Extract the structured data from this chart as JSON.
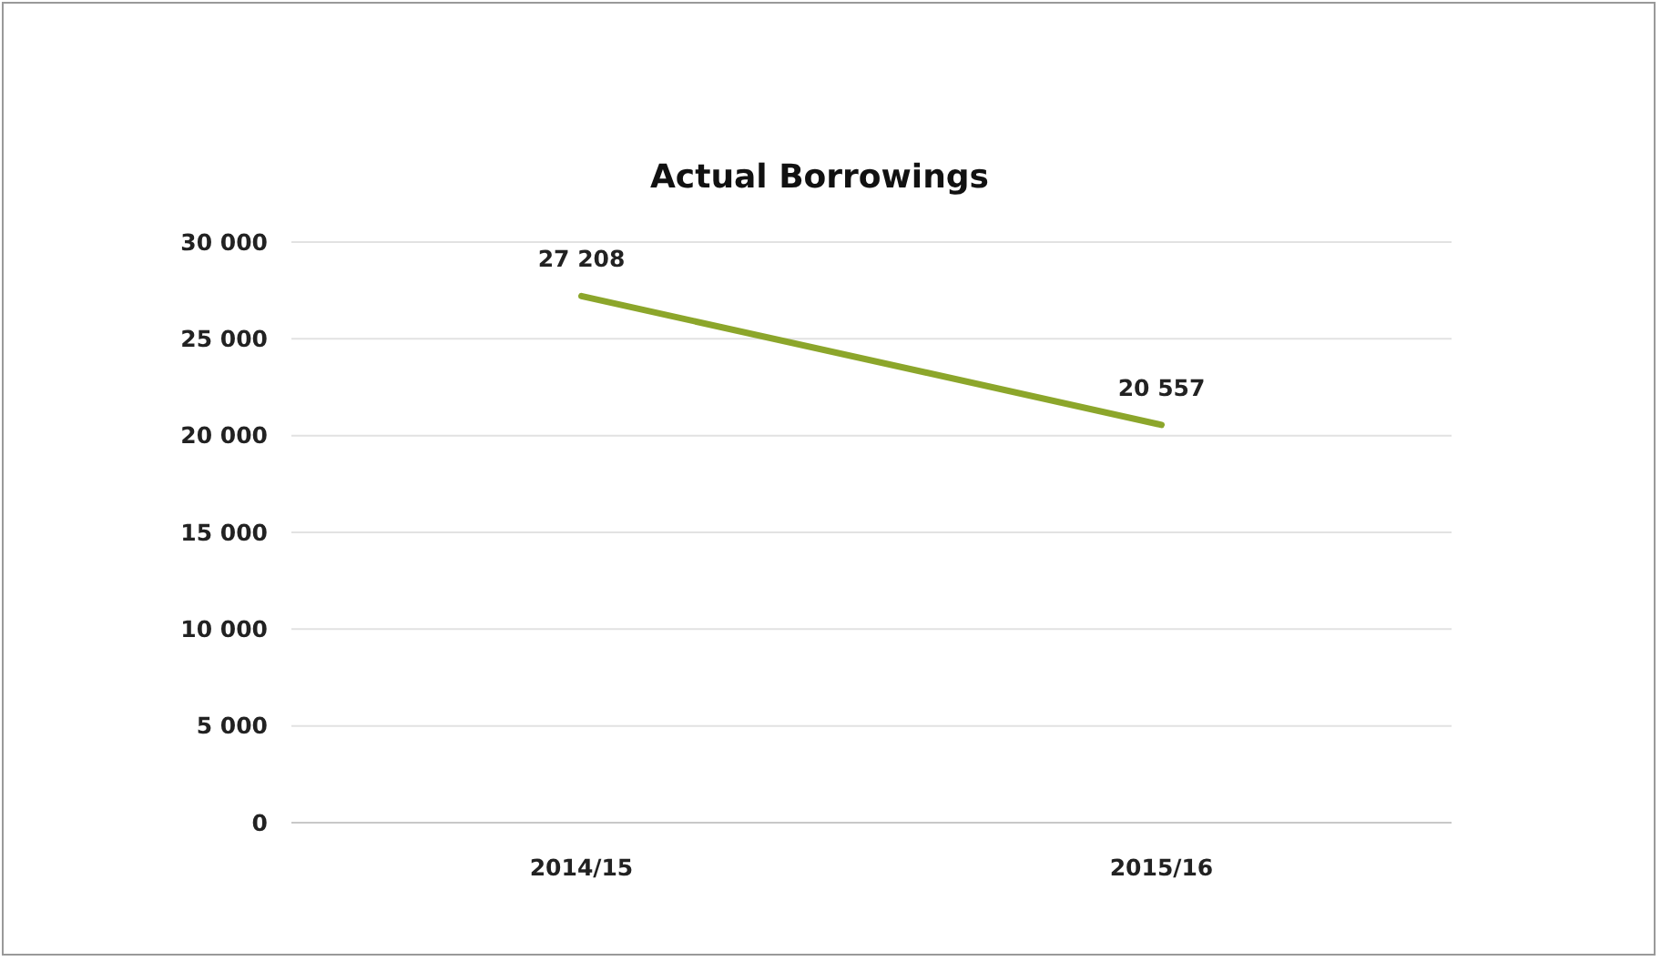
{
  "chart_data": {
    "type": "line",
    "title": "Actual Borrowings",
    "categories": [
      "2014/15",
      "2015/16"
    ],
    "series": [
      {
        "color": "#8ca62b",
        "values": [
          27208,
          20557
        ],
        "value_labels": [
          "27 208",
          "20 557"
        ]
      }
    ],
    "ylim": [
      0,
      30000
    ],
    "yticks": [
      {
        "value": 0,
        "label": "0"
      },
      {
        "value": 5000,
        "label": "5 000"
      },
      {
        "value": 10000,
        "label": "10 000"
      },
      {
        "value": 15000,
        "label": "15 000"
      },
      {
        "value": 20000,
        "label": "20 000"
      },
      {
        "value": 25000,
        "label": "25 000"
      },
      {
        "value": 30000,
        "label": "30 000"
      }
    ],
    "grid": "y",
    "marker": "none",
    "line_style": "solid"
  }
}
